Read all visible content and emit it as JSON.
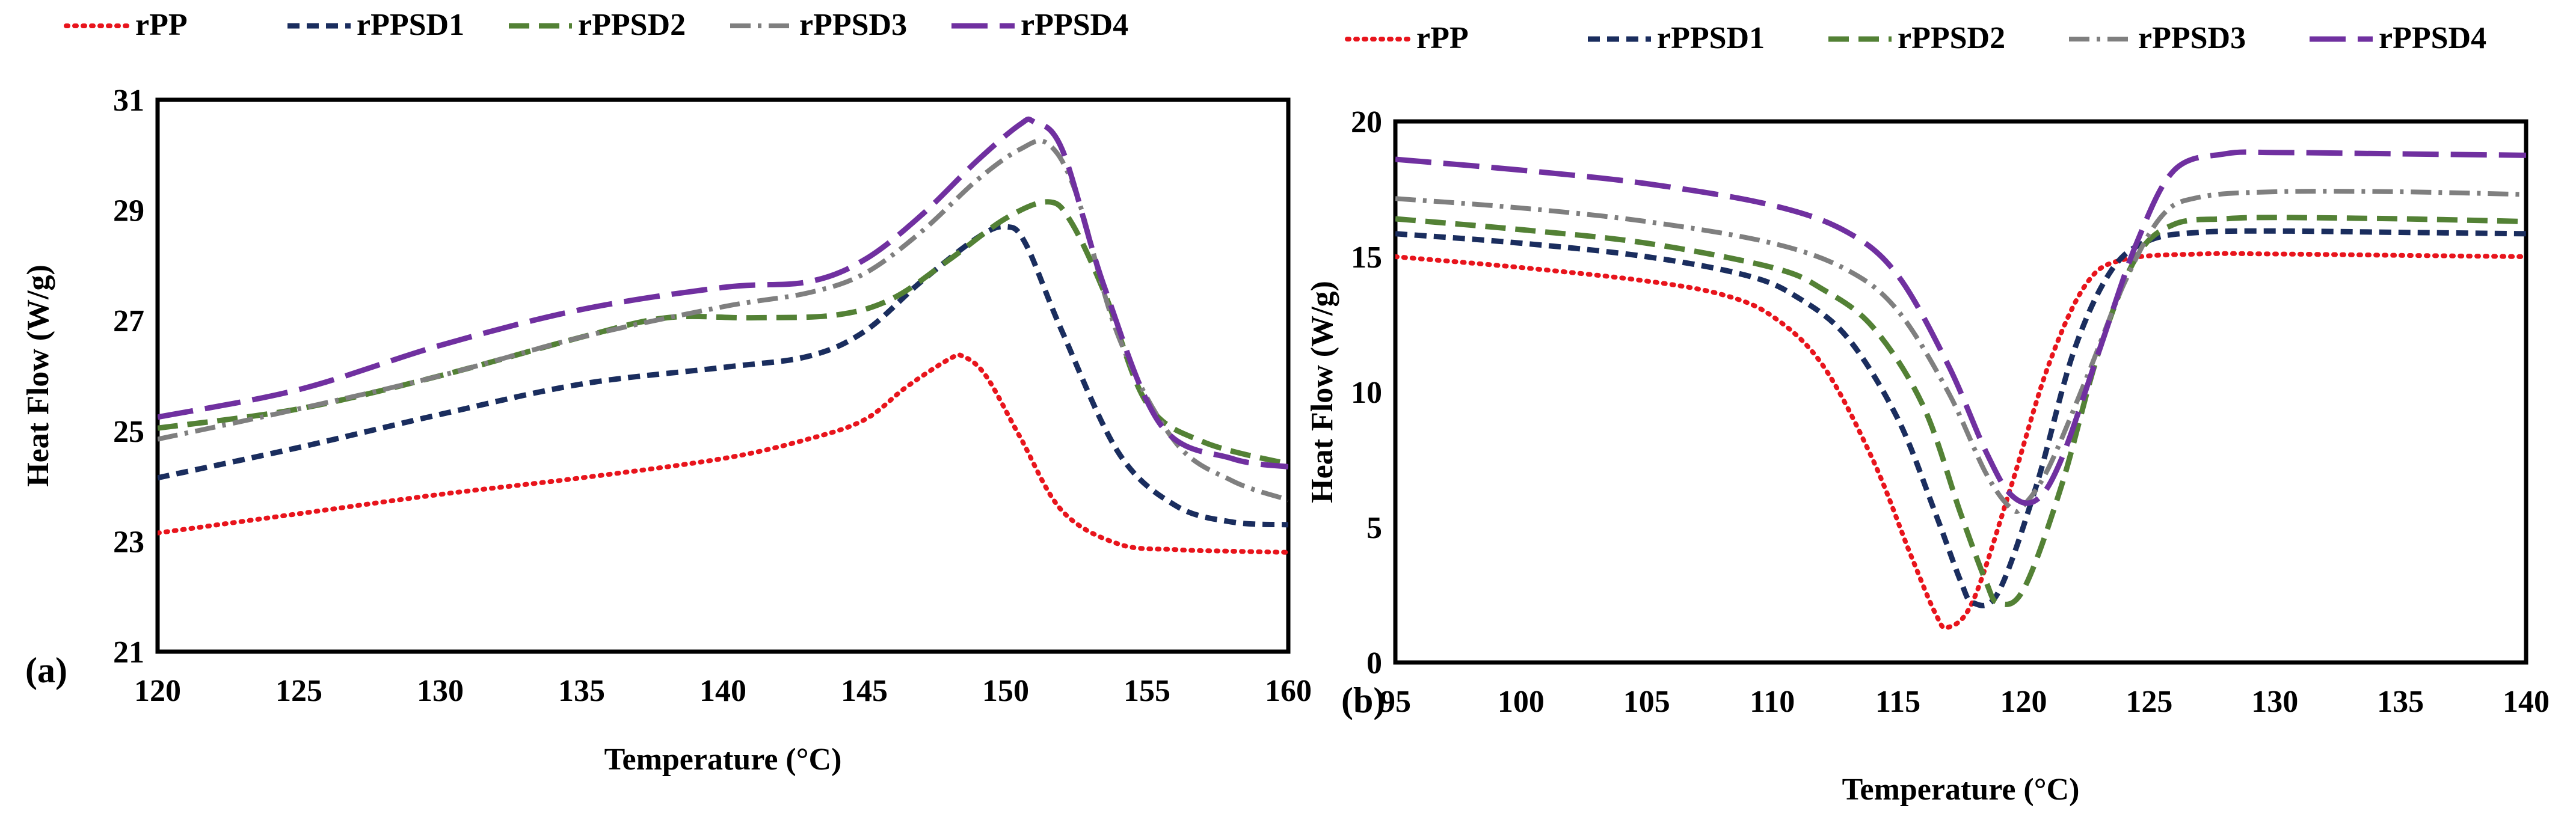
{
  "chart_data": [
    {
      "type": "line",
      "panel_label": "(a)",
      "xlabel": "Temperature (°C)",
      "ylabel": "Heat Flow (W/g)",
      "xlim": [
        120,
        160
      ],
      "ylim": [
        21,
        31
      ],
      "xticks": [
        120,
        125,
        130,
        135,
        140,
        145,
        150,
        155,
        160
      ],
      "yticks": [
        21,
        23,
        25,
        27,
        29,
        31
      ],
      "grid": false,
      "legend": "top",
      "series": [
        {
          "name": "rPP",
          "color": "#e8141c",
          "style": "dotted",
          "x": [
            120,
            125,
            130,
            135,
            140,
            143,
            145,
            146.5,
            148,
            148.5,
            149.3,
            150.5,
            152,
            154,
            156,
            158,
            160
          ],
          "y": [
            23.15,
            23.5,
            23.85,
            24.15,
            24.5,
            24.85,
            25.2,
            25.8,
            26.3,
            26.35,
            26.0,
            24.9,
            23.55,
            22.95,
            22.85,
            22.82,
            22.8
          ]
        },
        {
          "name": "rPPSD1",
          "color": "#1a2d5e",
          "style": "short-dash",
          "x": [
            120,
            125,
            130,
            135,
            140,
            143,
            145,
            147,
            149,
            150,
            150.7,
            152,
            154,
            156,
            158,
            160
          ],
          "y": [
            24.15,
            24.7,
            25.3,
            25.85,
            26.15,
            26.35,
            26.8,
            27.7,
            28.5,
            28.7,
            28.4,
            26.8,
            24.6,
            23.65,
            23.35,
            23.3
          ]
        },
        {
          "name": "rPPSD2",
          "color": "#538135",
          "style": "dash",
          "x": [
            120,
            125,
            130,
            135,
            138,
            141,
            144,
            146,
            148,
            150,
            151.5,
            152.3,
            153.5,
            155,
            157,
            160
          ],
          "y": [
            25.05,
            25.4,
            26.0,
            26.7,
            27.05,
            27.05,
            27.1,
            27.4,
            28.1,
            28.85,
            29.15,
            28.8,
            27.5,
            25.5,
            24.8,
            24.4
          ]
        },
        {
          "name": "rPPSD3",
          "color": "#7f7f7f",
          "style": "dash-dot",
          "x": [
            120,
            125,
            130,
            135,
            140,
            143,
            145,
            147,
            149,
            150.5,
            151.5,
            152.5,
            154,
            156,
            158,
            160
          ],
          "y": [
            24.85,
            25.4,
            26.0,
            26.7,
            27.25,
            27.5,
            27.85,
            28.6,
            29.55,
            30.1,
            30.2,
            29.3,
            26.7,
            24.8,
            24.1,
            23.75
          ]
        },
        {
          "name": "rPPSD4",
          "color": "#7030a0",
          "style": "long-dash",
          "x": [
            120,
            125,
            130,
            135,
            140,
            143,
            145,
            147,
            149,
            150.5,
            151,
            152,
            153.5,
            155.5,
            158,
            160
          ],
          "y": [
            25.25,
            25.75,
            26.55,
            27.2,
            27.6,
            27.7,
            28.1,
            28.9,
            29.9,
            30.55,
            30.6,
            30.1,
            27.6,
            25.1,
            24.5,
            24.35
          ]
        }
      ]
    },
    {
      "type": "line",
      "panel_label": "(b)",
      "xlabel": "Temperature (°C)",
      "ylabel": "Heat Flow (W/g)",
      "xlim": [
        95,
        140
      ],
      "ylim": [
        0,
        20
      ],
      "xticks": [
        95,
        100,
        105,
        110,
        115,
        120,
        125,
        130,
        135,
        140
      ],
      "yticks": [
        0,
        5,
        10,
        15,
        20
      ],
      "grid": false,
      "legend": "top",
      "series": [
        {
          "name": "rPP",
          "color": "#e8141c",
          "style": "dotted",
          "x": [
            95,
            100,
            105,
            108,
            110,
            112,
            114,
            115.5,
            116.5,
            117,
            118,
            119.5,
            121,
            122.5,
            124,
            127,
            130,
            135,
            140
          ],
          "y": [
            15.0,
            14.6,
            14.1,
            13.6,
            12.8,
            11.0,
            7.5,
            4.0,
            1.8,
            1.3,
            2.3,
            6.5,
            11.0,
            14.0,
            14.9,
            15.1,
            15.1,
            15.05,
            15.0
          ]
        },
        {
          "name": "rPPSD1",
          "color": "#1a2d5e",
          "style": "short-dash",
          "x": [
            95,
            100,
            105,
            109,
            111,
            113,
            115,
            116.5,
            117.5,
            118,
            119,
            120.5,
            122,
            123.5,
            125,
            127,
            130,
            135,
            140
          ],
          "y": [
            15.85,
            15.5,
            15.0,
            14.3,
            13.5,
            12.0,
            9.0,
            5.5,
            3.0,
            2.2,
            2.6,
            6.5,
            11.5,
            14.5,
            15.6,
            15.9,
            15.95,
            15.9,
            15.85
          ]
        },
        {
          "name": "rPPSD2",
          "color": "#538135",
          "style": "dash",
          "x": [
            95,
            100,
            105,
            110,
            112,
            114,
            116,
            117.5,
            118.5,
            119,
            120,
            121.5,
            123,
            124.5,
            126,
            128,
            130,
            135,
            140
          ],
          "y": [
            16.4,
            16.0,
            15.5,
            14.6,
            13.8,
            12.4,
            9.5,
            5.5,
            3.0,
            2.2,
            2.7,
            6.5,
            11.5,
            15.0,
            16.2,
            16.4,
            16.45,
            16.4,
            16.3
          ]
        },
        {
          "name": "rPPSD3",
          "color": "#7f7f7f",
          "style": "dash-dot",
          "x": [
            95,
            100,
            105,
            110,
            113,
            115,
            117,
            118.5,
            119.5,
            120,
            121,
            122.5,
            124,
            125.5,
            127,
            130,
            135,
            140
          ],
          "y": [
            17.15,
            16.8,
            16.3,
            15.5,
            14.5,
            13.0,
            10.0,
            7.0,
            5.7,
            5.8,
            7.2,
            10.5,
            14.0,
            16.5,
            17.2,
            17.4,
            17.4,
            17.3
          ]
        },
        {
          "name": "rPPSD4",
          "color": "#7030a0",
          "style": "long-dash",
          "x": [
            95,
            100,
            105,
            110,
            113,
            115,
            117,
            118.5,
            119.5,
            120.5,
            121.5,
            123,
            124.5,
            126,
            128,
            130,
            135,
            140
          ],
          "y": [
            18.6,
            18.2,
            17.7,
            16.9,
            15.9,
            14.3,
            11.0,
            7.8,
            6.2,
            6.0,
            7.5,
            11.5,
            15.5,
            18.2,
            18.8,
            18.85,
            18.8,
            18.75
          ]
        }
      ]
    }
  ]
}
